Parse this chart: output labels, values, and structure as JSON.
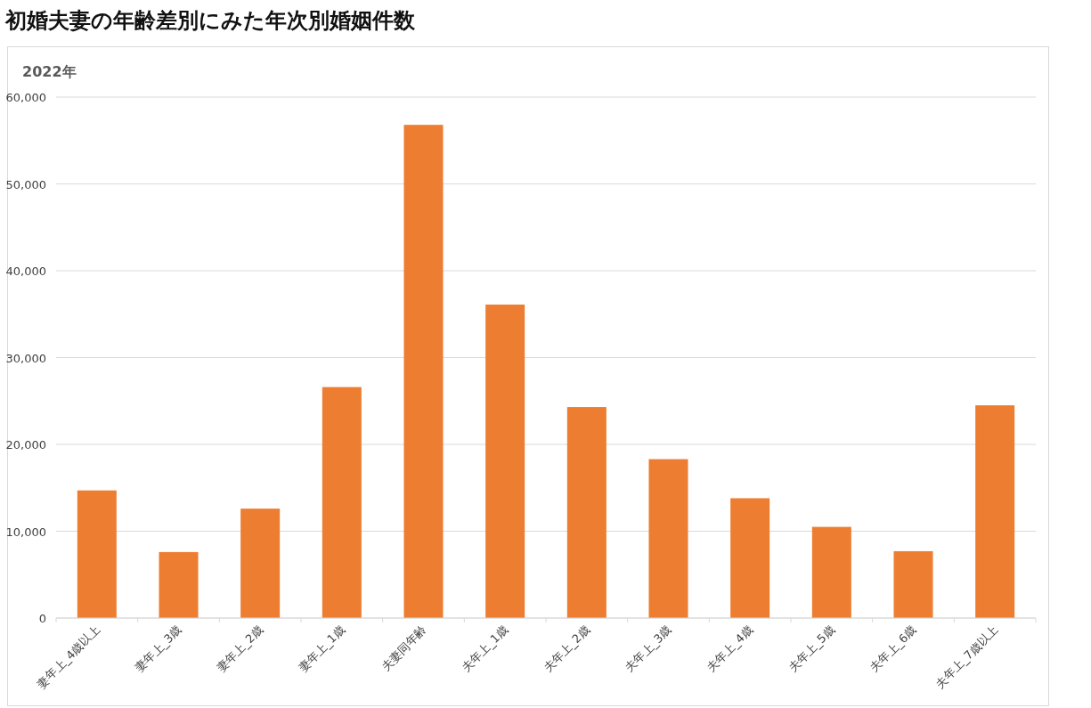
{
  "chart_data": {
    "type": "bar",
    "title": "初婚夫妻の年齢差別にみた年次別婚姻件数",
    "subtitle": "2022年",
    "categories": [
      "妻年上_4歳以上",
      "妻年上_3歳",
      "妻年上_2歳",
      "妻年上_1歳",
      "夫妻同年齢",
      "夫年上_1歳",
      "夫年上_2歳",
      "夫年上_3歳",
      "夫年上_4歳",
      "夫年上_5歳",
      "夫年上_6歳",
      "夫年上_7歳以上"
    ],
    "values": [
      14700,
      7600,
      12600,
      26600,
      56800,
      36100,
      24300,
      18300,
      13800,
      10500,
      7700,
      24500
    ],
    "color": "#ed7d31",
    "ylim": [
      0,
      60000
    ],
    "yticks": [
      0,
      {
        "value": 10000,
        "label": "10,000"
      },
      {
        "value": 20000,
        "label": "20,000"
      },
      {
        "value": 30000,
        "label": "30,000"
      },
      {
        "value": 40000,
        "label": "40,000"
      },
      {
        "value": 50000,
        "label": "50,000"
      },
      {
        "value": 60000,
        "label": "60,000"
      }
    ],
    "grid": "y",
    "legend": false
  }
}
